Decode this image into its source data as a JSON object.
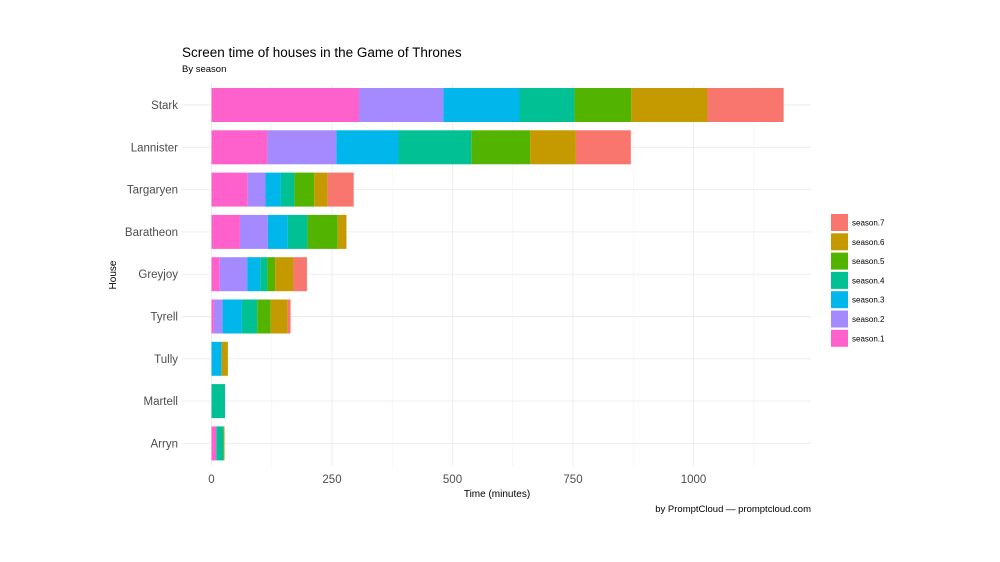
{
  "chart_data": {
    "type": "bar",
    "orientation": "horizontal",
    "stacked": true,
    "title": "Screen time of houses in the Game of Thrones",
    "subtitle": "By season",
    "xlabel": "Time (minutes)",
    "ylabel": "House",
    "caption": "by PromptCloud — promptcloud.com",
    "xlim": [
      0,
      1245
    ],
    "xticks": [
      0,
      250,
      500,
      750,
      1000
    ],
    "xtick_labels": [
      "0",
      "250",
      "500",
      "750",
      "1000"
    ],
    "grid": true,
    "legend_position": "right",
    "categories": [
      "Stark",
      "Lannister",
      "Targaryen",
      "Baratheon",
      "Greyjoy",
      "Tyrell",
      "Tully",
      "Martell",
      "Arryn"
    ],
    "series": [
      {
        "name": "season.1",
        "color": "#FF61CC",
        "values": [
          306,
          116,
          75,
          59,
          17,
          5,
          0,
          0,
          10
        ]
      },
      {
        "name": "season.2",
        "color": "#A58AFF",
        "values": [
          175,
          143,
          37,
          58,
          57,
          18,
          0,
          0,
          0
        ]
      },
      {
        "name": "season.3",
        "color": "#00B6EB",
        "values": [
          158,
          129,
          32,
          41,
          27,
          40,
          21,
          0,
          0
        ]
      },
      {
        "name": "season.4",
        "color": "#00C094",
        "values": [
          114,
          151,
          28,
          41,
          15,
          32,
          0,
          28,
          15
        ]
      },
      {
        "name": "season.5",
        "color": "#53B400",
        "values": [
          118,
          122,
          41,
          63,
          16,
          28,
          0,
          0,
          0
        ]
      },
      {
        "name": "season.6",
        "color": "#C49A00",
        "values": [
          158,
          95,
          28,
          18,
          38,
          35,
          13,
          0,
          2
        ]
      },
      {
        "name": "season.7",
        "color": "#F8766D",
        "values": [
          158,
          114,
          54,
          0,
          28,
          6,
          0,
          0,
          0
        ]
      }
    ],
    "legend_order": [
      "season.7",
      "season.6",
      "season.5",
      "season.4",
      "season.3",
      "season.2",
      "season.1"
    ]
  }
}
